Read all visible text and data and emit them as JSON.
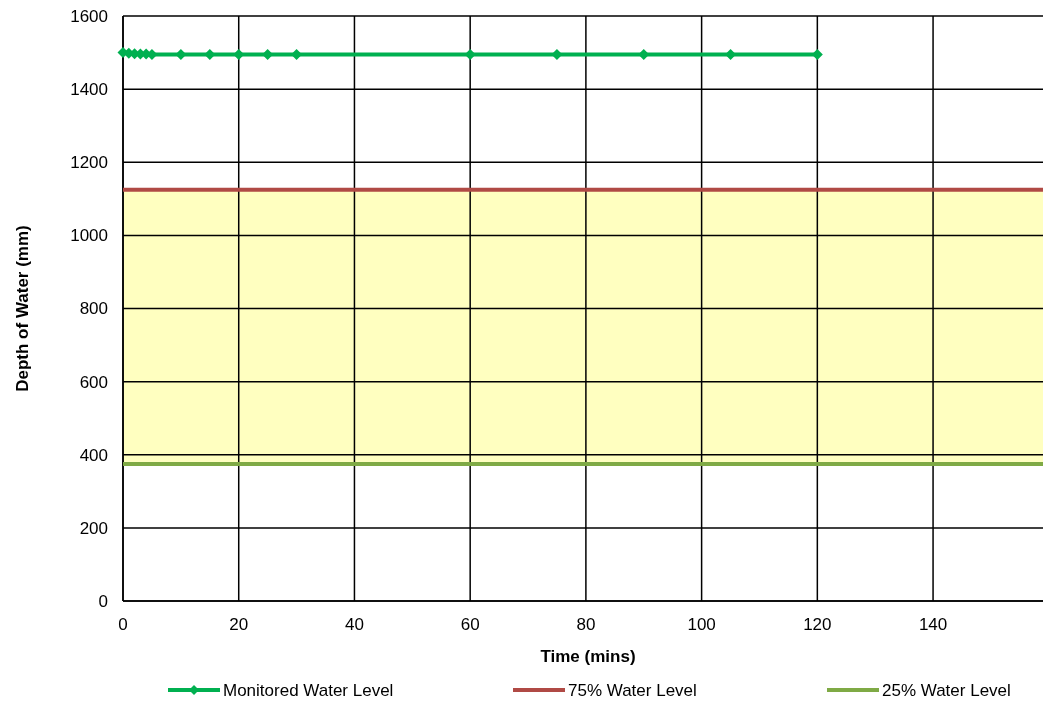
{
  "chart_data": {
    "type": "line",
    "xlabel": "Time (mins)",
    "ylabel": "Depth of Water (mm)",
    "xlim": [
      0,
      159
    ],
    "xticks": [
      0,
      20,
      40,
      60,
      80,
      100,
      120,
      140
    ],
    "ylim": [
      0,
      1600
    ],
    "yticks": [
      0,
      200,
      400,
      600,
      800,
      1000,
      1200,
      1400,
      1600
    ],
    "grid": true,
    "legend": "bottom",
    "bands": [
      {
        "axis": "y",
        "from": 375,
        "to": 1125,
        "color": "#ffffc0"
      }
    ],
    "series": [
      {
        "name": "Monitored Water Level",
        "color": "#00b050",
        "marker": "diamond",
        "x": [
          0,
          1,
          2,
          3,
          4,
          5,
          10,
          15,
          20,
          25,
          30,
          60,
          75,
          90,
          105,
          120
        ],
        "values": [
          1500,
          1498,
          1497,
          1496,
          1496,
          1495,
          1495,
          1495,
          1495,
          1495,
          1495,
          1495,
          1495,
          1495,
          1495,
          1495
        ]
      },
      {
        "name": "75% Water Level",
        "color": "#b04a45",
        "marker": "none",
        "x": [
          0,
          159
        ],
        "values": [
          1125,
          1125
        ]
      },
      {
        "name": "25% Water Level",
        "color": "#7faa45",
        "marker": "none",
        "x": [
          0,
          159
        ],
        "values": [
          375,
          375
        ]
      }
    ]
  }
}
